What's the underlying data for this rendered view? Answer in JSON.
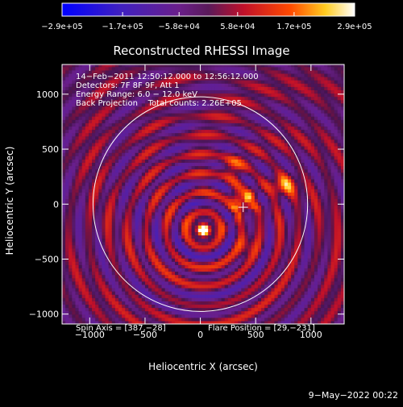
{
  "chart_data": {
    "type": "heatmap",
    "title": "Reconstructed RHESSI Image",
    "xlabel": "Heliocentric X (arcsec)",
    "ylabel": "Heliocentric Y (arcsec)",
    "xlim": [
      -1250,
      1300
    ],
    "ylim": [
      -1090,
      1270
    ],
    "xticks": [
      -1000,
      -500,
      0,
      500,
      1000
    ],
    "xtick_labels": [
      "−1000",
      "−500",
      "0",
      "500",
      "1000"
    ],
    "yticks": [
      -1000,
      -500,
      0,
      500,
      1000
    ],
    "ytick_labels": [
      "−1000",
      "−500",
      "0",
      "500",
      "1000"
    ],
    "colorbar": {
      "min": -290000,
      "max": 290000,
      "colormap": "blue-purple-red-yellow-white",
      "tick_values": [
        -290000,
        -170000,
        -58000,
        58000,
        170000,
        290000
      ],
      "tick_labels": [
        "−2.9e+05",
        "−1.7e+05",
        "−5.8e+04",
        "5.8e+04",
        "1.7e+05",
        "2.9e+05"
      ]
    },
    "annotations": [
      "14−Feb−2011 12:50:12.000 to 12:56:12.000",
      "Detectors: 7F 8F 9F, Att 1",
      "Energy Range: 6.0 − 12.0 keV",
      "Back Projection    Total counts: 2.26E+05"
    ],
    "spin_axis_label": "Spin Axis = [387,−28]",
    "flare_position_label": "Flare Position = [29,−231]",
    "spin_axis": [
      387,
      -28
    ],
    "flare_position": [
      29,
      -231
    ],
    "solar_limb_radius": 970,
    "sources": [
      {
        "x": 29,
        "y": -231,
        "peak": 290000
      },
      {
        "x": 380,
        "y": 40,
        "peak": 200000
      },
      {
        "x": 760,
        "y": 170,
        "peak": 170000
      },
      {
        "x": 280,
        "y": 350,
        "peak": 120000
      },
      {
        "x": 420,
        "y": -380,
        "peak": 100000
      }
    ]
  },
  "footer": {
    "timestamp": "9−May−2022 00:22"
  }
}
